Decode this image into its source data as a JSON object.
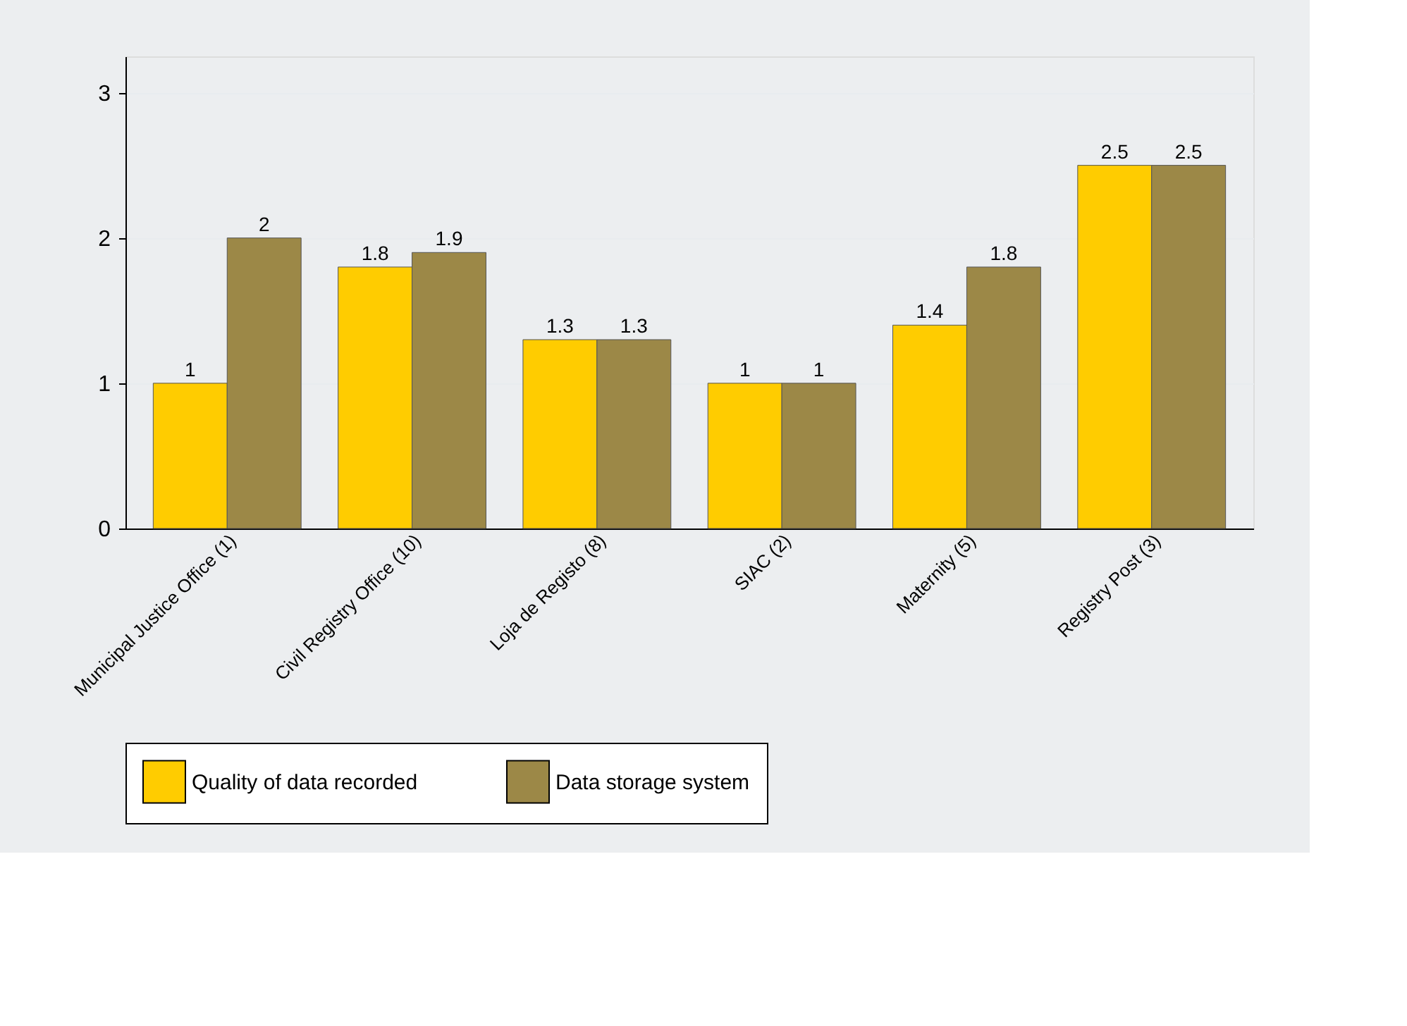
{
  "chart_data": {
    "type": "bar",
    "categories": [
      "Municipal Justice Office (1)",
      "Civil Registry Office (10)",
      "Loja de Registo (8)",
      "SIAC (2)",
      "Maternity (5)",
      "Registry Post (3)"
    ],
    "series": [
      {
        "name": "Quality of data recorded",
        "color": "#ffcc00",
        "values": [
          1,
          1.8,
          1.3,
          1,
          1.4,
          2.5
        ]
      },
      {
        "name": "Data storage system",
        "color": "#9c8847",
        "values": [
          2,
          1.9,
          1.3,
          1,
          1.8,
          2.5
        ]
      }
    ],
    "ylim": [
      0,
      3.25
    ],
    "yticks": [
      0,
      1,
      2,
      3
    ],
    "grid": "y",
    "legend": "bottom",
    "data_labels": true
  }
}
